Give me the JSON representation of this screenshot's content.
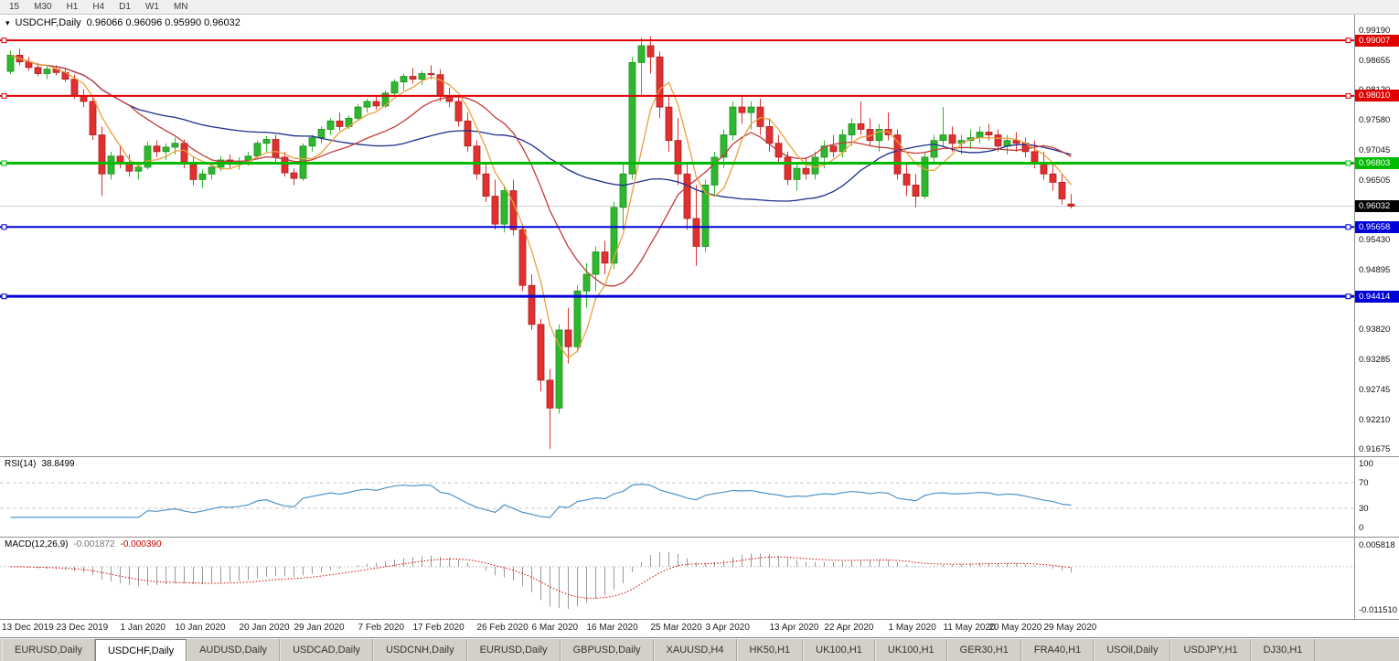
{
  "toolbar": {
    "timeframes": [
      "15",
      "M30",
      "H1",
      "H4",
      "D1",
      "W1",
      "MN"
    ]
  },
  "chart": {
    "title": "USDCHF,Daily",
    "ohlc": "0.96066 0.96096 0.95990 0.96032"
  },
  "chart_data": {
    "type": "candlestick",
    "symbol": "USDCHF",
    "period": "Daily",
    "open": 0.96066,
    "high": 0.96096,
    "low": 0.9599,
    "close": 0.96032,
    "ylim": {
      "max": 0.99468,
      "min": 0.91546
    },
    "price_axis": [
      "0.99190",
      "0.98655",
      "0.98120",
      "0.97580",
      "0.97045",
      "0.96505",
      "0.95970",
      "0.95430",
      "0.94895",
      "0.94360",
      "0.93820",
      "0.93285",
      "0.92745",
      "0.92210",
      "0.91675"
    ],
    "current_price": 0.96032,
    "current_price_label": "0.96032",
    "hlines": [
      {
        "label": "0.99007",
        "price": 0.99007,
        "color": "#e00000",
        "width": 2
      },
      {
        "label": "0.98010",
        "price": 0.9801,
        "color": "#e00000",
        "width": 2
      },
      {
        "label": "0.96803",
        "price": 0.96803,
        "color": "#00bb00",
        "width": 3
      },
      {
        "label": "0.95658",
        "price": 0.95658,
        "color": "#0000d8",
        "width": 2
      },
      {
        "label": "0.94414",
        "price": 0.94414,
        "color": "#0000d8",
        "width": 3
      }
    ],
    "colors": {
      "bull": "#2eb82e",
      "bull_border": "#1d8a1d",
      "bear": "#e03030",
      "bear_border": "#a81f1f",
      "current_price_line": "#d0d0d0"
    },
    "ma": {
      "fast": {
        "period": 5,
        "color": "#e8a13c"
      },
      "medium": {
        "period": 14,
        "color": "#c23b3b"
      },
      "slow": {
        "period": 34,
        "color": "#1b2e8a"
      }
    },
    "candles": [
      [
        0.9845,
        0.9882,
        0.984,
        0.9874
      ],
      [
        0.9874,
        0.9886,
        0.9856,
        0.9862
      ],
      [
        0.9862,
        0.9871,
        0.9846,
        0.9852
      ],
      [
        0.9852,
        0.986,
        0.9836,
        0.9841
      ],
      [
        0.9841,
        0.9854,
        0.9831,
        0.9849
      ],
      [
        0.9849,
        0.9856,
        0.9838,
        0.9843
      ],
      [
        0.9843,
        0.9851,
        0.9826,
        0.9831
      ],
      [
        0.9831,
        0.9839,
        0.9796,
        0.9801
      ],
      [
        0.9801,
        0.9813,
        0.9781,
        0.9791
      ],
      [
        0.9791,
        0.9801,
        0.9722,
        0.9731
      ],
      [
        0.9731,
        0.9746,
        0.9621,
        0.9661
      ],
      [
        0.9661,
        0.9701,
        0.9651,
        0.9693
      ],
      [
        0.9693,
        0.9711,
        0.9671,
        0.9681
      ],
      [
        0.9681,
        0.9696,
        0.9656,
        0.9666
      ],
      [
        0.9666,
        0.9681,
        0.9651,
        0.9673
      ],
      [
        0.9673,
        0.9719,
        0.9669,
        0.9711
      ],
      [
        0.9711,
        0.9721,
        0.9691,
        0.9701
      ],
      [
        0.9701,
        0.9716,
        0.9686,
        0.9709
      ],
      [
        0.9709,
        0.9726,
        0.9696,
        0.9716
      ],
      [
        0.9716,
        0.9723,
        0.9671,
        0.9681
      ],
      [
        0.9681,
        0.9691,
        0.9641,
        0.9651
      ],
      [
        0.9651,
        0.9669,
        0.9636,
        0.9661
      ],
      [
        0.9661,
        0.9681,
        0.9651,
        0.9673
      ],
      [
        0.9673,
        0.9693,
        0.9666,
        0.9686
      ],
      [
        0.9686,
        0.9696,
        0.9671,
        0.9679
      ],
      [
        0.9679,
        0.9691,
        0.9669,
        0.9684
      ],
      [
        0.9684,
        0.9701,
        0.9676,
        0.9693
      ],
      [
        0.9693,
        0.9721,
        0.9689,
        0.9716
      ],
      [
        0.9716,
        0.9729,
        0.9701,
        0.9723
      ],
      [
        0.9723,
        0.9731,
        0.9681,
        0.9691
      ],
      [
        0.9691,
        0.9701,
        0.9656,
        0.9663
      ],
      [
        0.9663,
        0.9671,
        0.9641,
        0.9653
      ],
      [
        0.9653,
        0.9716,
        0.9649,
        0.9711
      ],
      [
        0.9711,
        0.9731,
        0.9701,
        0.9726
      ],
      [
        0.9726,
        0.9746,
        0.9716,
        0.9741
      ],
      [
        0.9741,
        0.9761,
        0.9731,
        0.9756
      ],
      [
        0.9756,
        0.9771,
        0.9739,
        0.9746
      ],
      [
        0.9746,
        0.9766,
        0.9741,
        0.9761
      ],
      [
        0.9761,
        0.9786,
        0.9756,
        0.9781
      ],
      [
        0.9781,
        0.9796,
        0.9771,
        0.9791
      ],
      [
        0.9791,
        0.9801,
        0.9776,
        0.9783
      ],
      [
        0.9783,
        0.9811,
        0.9779,
        0.9806
      ],
      [
        0.9806,
        0.9831,
        0.9801,
        0.9826
      ],
      [
        0.9826,
        0.9841,
        0.9811,
        0.9836
      ],
      [
        0.9836,
        0.9851,
        0.9823,
        0.9831
      ],
      [
        0.9831,
        0.9846,
        0.9821,
        0.9841
      ],
      [
        0.9841,
        0.9856,
        0.9831,
        0.9839
      ],
      [
        0.9839,
        0.9849,
        0.9791,
        0.9801
      ],
      [
        0.9801,
        0.9816,
        0.9781,
        0.9791
      ],
      [
        0.9791,
        0.9801,
        0.9746,
        0.9756
      ],
      [
        0.9756,
        0.9771,
        0.9701,
        0.9711
      ],
      [
        0.9711,
        0.9721,
        0.9651,
        0.9661
      ],
      [
        0.9661,
        0.9681,
        0.9611,
        0.9621
      ],
      [
        0.9621,
        0.9651,
        0.9561,
        0.9571
      ],
      [
        0.9571,
        0.9641,
        0.9556,
        0.9631
      ],
      [
        0.9631,
        0.9651,
        0.9551,
        0.9561
      ],
      [
        0.9561,
        0.9571,
        0.9451,
        0.9461
      ],
      [
        0.9461,
        0.9481,
        0.9381,
        0.9391
      ],
      [
        0.9391,
        0.9401,
        0.9271,
        0.9291
      ],
      [
        0.9291,
        0.9311,
        0.9168,
        0.9241
      ],
      [
        0.9241,
        0.9391,
        0.9231,
        0.9381
      ],
      [
        0.9381,
        0.9421,
        0.9321,
        0.9351
      ],
      [
        0.9351,
        0.9461,
        0.9341,
        0.9451
      ],
      [
        0.9451,
        0.9501,
        0.9421,
        0.9481
      ],
      [
        0.9481,
        0.9531,
        0.9451,
        0.9521
      ],
      [
        0.9521,
        0.9541,
        0.9481,
        0.9501
      ],
      [
        0.9501,
        0.9611,
        0.9491,
        0.9601
      ],
      [
        0.9601,
        0.9681,
        0.9561,
        0.9661
      ],
      [
        0.9661,
        0.9871,
        0.9651,
        0.9861
      ],
      [
        0.9861,
        0.9906,
        0.9801,
        0.9891
      ],
      [
        0.9891,
        0.9908,
        0.9841,
        0.9871
      ],
      [
        0.9871,
        0.9881,
        0.9761,
        0.9781
      ],
      [
        0.9781,
        0.9801,
        0.9701,
        0.9721
      ],
      [
        0.9721,
        0.9761,
        0.9641,
        0.9661
      ],
      [
        0.9661,
        0.9681,
        0.9561,
        0.9581
      ],
      [
        0.9581,
        0.9641,
        0.9496,
        0.9531
      ],
      [
        0.9531,
        0.9651,
        0.9521,
        0.9641
      ],
      [
        0.9641,
        0.9701,
        0.9621,
        0.9691
      ],
      [
        0.9691,
        0.9741,
        0.9671,
        0.9731
      ],
      [
        0.9731,
        0.9791,
        0.9721,
        0.9781
      ],
      [
        0.9781,
        0.9801,
        0.9751,
        0.9771
      ],
      [
        0.9771,
        0.9791,
        0.9741,
        0.9781
      ],
      [
        0.9781,
        0.9796,
        0.9731,
        0.9746
      ],
      [
        0.9746,
        0.9761,
        0.9701,
        0.9716
      ],
      [
        0.9716,
        0.9731,
        0.9681,
        0.9691
      ],
      [
        0.9691,
        0.9701,
        0.9641,
        0.9651
      ],
      [
        0.9651,
        0.9681,
        0.9631,
        0.9671
      ],
      [
        0.9671,
        0.9691,
        0.9651,
        0.9661
      ],
      [
        0.9661,
        0.9701,
        0.9651,
        0.9691
      ],
      [
        0.9691,
        0.9721,
        0.9671,
        0.9711
      ],
      [
        0.9711,
        0.9731,
        0.9691,
        0.9701
      ],
      [
        0.9701,
        0.9741,
        0.9691,
        0.9731
      ],
      [
        0.9731,
        0.9761,
        0.9711,
        0.9751
      ],
      [
        0.9751,
        0.9791,
        0.9731,
        0.9741
      ],
      [
        0.9741,
        0.9761,
        0.9711,
        0.9721
      ],
      [
        0.9721,
        0.9751,
        0.9701,
        0.9741
      ],
      [
        0.9741,
        0.9771,
        0.9721,
        0.9731
      ],
      [
        0.9731,
        0.9741,
        0.9651,
        0.9661
      ],
      [
        0.9661,
        0.9681,
        0.9621,
        0.9641
      ],
      [
        0.9641,
        0.9661,
        0.9601,
        0.9621
      ],
      [
        0.9621,
        0.9701,
        0.9616,
        0.9691
      ],
      [
        0.9691,
        0.9731,
        0.9681,
        0.9721
      ],
      [
        0.9721,
        0.9781,
        0.9711,
        0.9731
      ],
      [
        0.9731,
        0.9746,
        0.9701,
        0.9716
      ],
      [
        0.9716,
        0.9731,
        0.9696,
        0.9721
      ],
      [
        0.9721,
        0.9741,
        0.9706,
        0.9726
      ],
      [
        0.9726,
        0.9746,
        0.9716,
        0.9736
      ],
      [
        0.9736,
        0.9751,
        0.9721,
        0.9731
      ],
      [
        0.9731,
        0.9741,
        0.9701,
        0.9711
      ],
      [
        0.9711,
        0.9731,
        0.9696,
        0.9721
      ],
      [
        0.9721,
        0.9736,
        0.9701,
        0.9716
      ],
      [
        0.9716,
        0.9726,
        0.9691,
        0.9701
      ],
      [
        0.9701,
        0.9721,
        0.9671,
        0.9681
      ],
      [
        0.9681,
        0.9701,
        0.9651,
        0.9661
      ],
      [
        0.9661,
        0.9681,
        0.9631,
        0.9646
      ],
      [
        0.9646,
        0.9661,
        0.9606,
        0.9616
      ],
      [
        0.9607,
        0.9625,
        0.9599,
        0.9603
      ]
    ],
    "date_labels": [
      {
        "label": "13 Dec 2019",
        "i": 2
      },
      {
        "label": "23 Dec 2019",
        "i": 8
      },
      {
        "label": "1 Jan 2020",
        "i": 15
      },
      {
        "label": "10 Jan 2020",
        "i": 21
      },
      {
        "label": "20 Jan 2020",
        "i": 28
      },
      {
        "label": "29 Jan 2020",
        "i": 34
      },
      {
        "label": "7 Feb 2020",
        "i": 41
      },
      {
        "label": "17 Feb 2020",
        "i": 47
      },
      {
        "label": "26 Feb 2020",
        "i": 54
      },
      {
        "label": "6 Mar 2020",
        "i": 60
      },
      {
        "label": "16 Mar 2020",
        "i": 66
      },
      {
        "label": "25 Mar 2020",
        "i": 73
      },
      {
        "label": "3 Apr 2020",
        "i": 79
      },
      {
        "label": "13 Apr 2020",
        "i": 86
      },
      {
        "label": "22 Apr 2020",
        "i": 92
      },
      {
        "label": "1 May 2020",
        "i": 99
      },
      {
        "label": "11 May 2020",
        "i": 105
      },
      {
        "label": "20 May 2020",
        "i": 110
      },
      {
        "label": "29 May 2020",
        "i": 116
      }
    ],
    "rsi": {
      "name": "RSI(14)",
      "value": "38.8499",
      "period": 14,
      "levels": [
        100,
        70,
        30,
        0
      ],
      "color": "#4f93c8",
      "level_color": "#c8c8c8"
    },
    "macd": {
      "name": "MACD(12,26,9)",
      "value_main": "-0.001872",
      "value_signal": "-0.000390",
      "fast": 12,
      "slow": 26,
      "signal": 9,
      "axis_max": "0.005818",
      "axis_min": "-0.011510",
      "hist_color": "#9a9a9a",
      "signal_color": "#d40000",
      "zero_color": "#c8c8c8"
    }
  },
  "tabs": {
    "items": [
      {
        "label": "EURUSD,Daily",
        "active": false
      },
      {
        "label": "USDCHF,Daily",
        "active": true
      },
      {
        "label": "AUDUSD,Daily",
        "active": false
      },
      {
        "label": "USDCAD,Daily",
        "active": false
      },
      {
        "label": "USDCNH,Daily",
        "active": false
      },
      {
        "label": "EURUSD,Daily",
        "active": false
      },
      {
        "label": "GBPUSD,Daily",
        "active": false
      },
      {
        "label": "XAUUSD,H4",
        "active": false
      },
      {
        "label": "HK50,H1",
        "active": false
      },
      {
        "label": "UK100,H1",
        "active": false
      },
      {
        "label": "UK100,H1",
        "active": false
      },
      {
        "label": "GER30,H1",
        "active": false
      },
      {
        "label": "FRA40,H1",
        "active": false
      },
      {
        "label": "USOil,Daily",
        "active": false
      },
      {
        "label": "USDJPY,H1",
        "active": false
      },
      {
        "label": "DJ30,H1",
        "active": false
      }
    ]
  }
}
